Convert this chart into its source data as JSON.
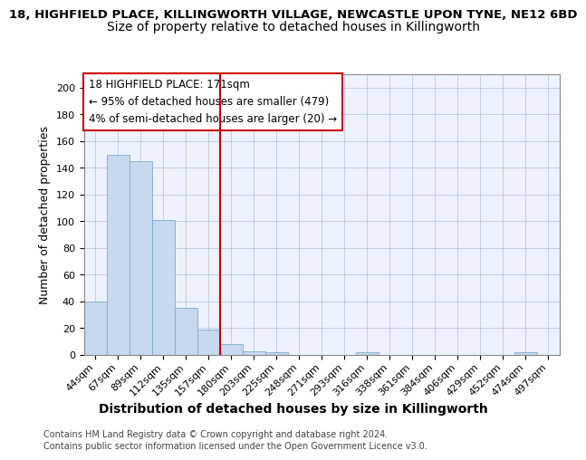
{
  "title_line1": "18, HIGHFIELD PLACE, KILLINGWORTH VILLAGE, NEWCASTLE UPON TYNE, NE12 6BD",
  "title_line2": "Size of property relative to detached houses in Killingworth",
  "xlabel": "Distribution of detached houses by size in Killingworth",
  "ylabel": "Number of detached properties",
  "bin_labels": [
    "44sqm",
    "67sqm",
    "89sqm",
    "112sqm",
    "135sqm",
    "157sqm",
    "180sqm",
    "203sqm",
    "225sqm",
    "248sqm",
    "271sqm",
    "293sqm",
    "316sqm",
    "338sqm",
    "361sqm",
    "384sqm",
    "406sqm",
    "429sqm",
    "452sqm",
    "474sqm",
    "497sqm"
  ],
  "bar_heights": [
    40,
    150,
    145,
    101,
    35,
    19,
    8,
    3,
    2,
    0,
    0,
    0,
    2,
    0,
    0,
    0,
    0,
    0,
    0,
    2,
    0
  ],
  "bar_color": "#c8d8ee",
  "bar_edge_color": "#7aadcc",
  "vline_color": "#cc0000",
  "vline_x_index": 6,
  "annotation_text": "18 HIGHFIELD PLACE: 171sqm\n← 95% of detached houses are smaller (479)\n4% of semi-detached houses are larger (20) →",
  "annotation_box_edgecolor": "#cc0000",
  "ylim": [
    0,
    210
  ],
  "yticks": [
    0,
    20,
    40,
    60,
    80,
    100,
    120,
    140,
    160,
    180,
    200
  ],
  "grid_color": "#b0b8d8",
  "background_color": "#eef2ff",
  "footer_line1": "Contains HM Land Registry data © Crown copyright and database right 2024.",
  "footer_line2": "Contains public sector information licensed under the Open Government Licence v3.0.",
  "title1_fontsize": 9.5,
  "title2_fontsize": 10,
  "ylabel_fontsize": 9,
  "xlabel_fontsize": 10,
  "annotation_fontsize": 8.5,
  "tick_fontsize": 8,
  "footer_fontsize": 7
}
